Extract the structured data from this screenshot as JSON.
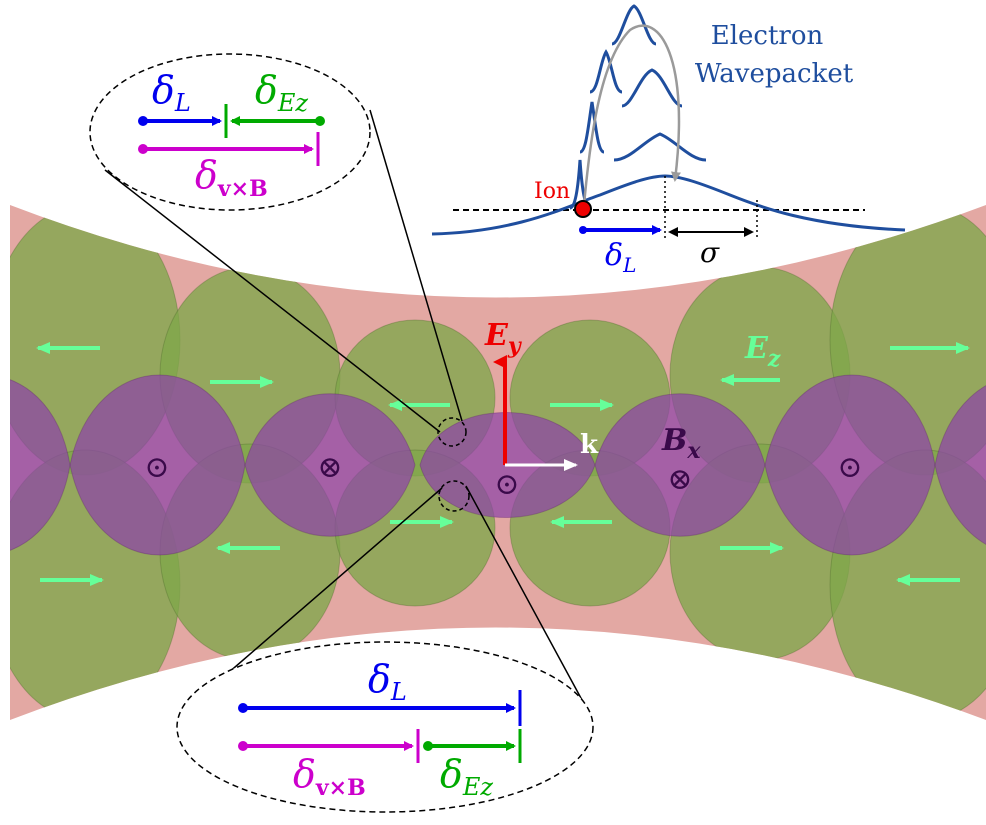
{
  "labels": {
    "electron_line1": "Electron",
    "electron_line2": "Wavepacket",
    "ion": "Ion",
    "delta": "δ",
    "sub_L": "L",
    "sub_Ez": "Ez",
    "sub_vxB": "v×B",
    "sigma": "σ",
    "E": "E",
    "sub_y": "y",
    "sub_z": "z",
    "B": "B",
    "sub_x": "x",
    "k": "k",
    "dot_symbol": "⊙",
    "cross_symbol": "⊗"
  },
  "colors": {
    "beam_pink": "#e3a8a3",
    "green_lobe": "#7fa64a",
    "purple_lobe": "#8e44a8",
    "arrow_green": "#66ff99",
    "blue": "#0000ee",
    "green": "#00aa00",
    "magenta": "#cc00cc",
    "red": "#ee0000",
    "wave_blue": "#1f4e9e",
    "dark_purple": "#3a0a4a"
  }
}
